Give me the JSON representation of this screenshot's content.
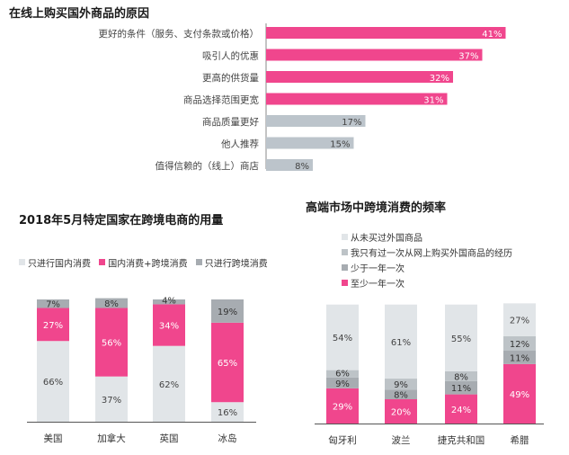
{
  "colors": {
    "pink": "#f0468d",
    "gray": "#bdc3c7",
    "light": "#e1e5e8",
    "dark": "#a7acb1",
    "bar_gray": "#bcc4cb"
  },
  "chart_data": [
    {
      "type": "bar",
      "orientation": "horizontal",
      "title": "在线上购买国外商品的原因",
      "categories": [
        "更好的条件（服务、支付条款或价格）",
        "吸引人的优惠",
        "更高的供货量",
        "商品选择范围更宽",
        "商品质量更好",
        "他人推荐",
        "值得信赖的（线上）商店"
      ],
      "values": [
        41,
        37,
        32,
        31,
        17,
        15,
        8
      ],
      "value_labels": [
        "41%",
        "37%",
        "32%",
        "31%",
        "17%",
        "15%",
        "8%"
      ],
      "highlight_count": 4
    },
    {
      "type": "bar",
      "stacked": true,
      "title": "2018年5月特定国家在跨境电商的用量",
      "categories": [
        "美国",
        "加拿大",
        "英国",
        "冰岛"
      ],
      "series": [
        {
          "name": "只进行国内消费",
          "values": [
            66,
            37,
            62,
            16
          ]
        },
        {
          "name": "国内消费+跨境消费",
          "values": [
            27,
            56,
            34,
            65
          ]
        },
        {
          "name": "只进行跨境消费",
          "values": [
            7,
            8,
            4,
            19
          ]
        }
      ],
      "legend_position": "top"
    },
    {
      "type": "bar",
      "stacked": true,
      "title": "高端市场中跨境消费的频率",
      "categories": [
        "匈牙利",
        "波兰",
        "捷克共和国",
        "希腊"
      ],
      "series": [
        {
          "name": "至少一年一次",
          "values": [
            29,
            20,
            24,
            49
          ]
        },
        {
          "name": "少于一年一次",
          "values": [
            9,
            8,
            11,
            11
          ]
        },
        {
          "name": "我只有过一次从网上购买外国商品的经历",
          "values": [
            6,
            9,
            8,
            12
          ]
        },
        {
          "name": "从未买过外国商品",
          "values": [
            54,
            61,
            55,
            27
          ]
        }
      ],
      "legend_position": "top"
    }
  ]
}
